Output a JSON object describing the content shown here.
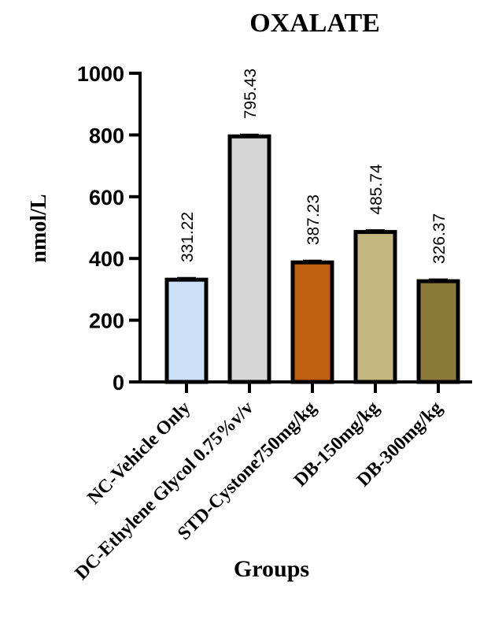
{
  "chart_data": {
    "type": "bar",
    "title": "OXALATE",
    "xlabel": "Groups",
    "ylabel": "nmol/L",
    "categories": [
      "NC-Vehicle Only",
      "DC-Ethylene Glycol 0.75%v/v",
      "STD-Cystone750mg/kg",
      "DB-150mg/kg",
      "DB-300mg/kg"
    ],
    "values": [
      331.22,
      795.43,
      387.23,
      485.74,
      326.37
    ],
    "value_labels": [
      "331.22",
      "795.43",
      "387.23",
      "485.74",
      "326.37"
    ],
    "error": [
      5,
      5,
      5,
      5,
      5
    ],
    "colors": [
      "#cce0f8",
      "#d6d6d6",
      "#c05f10",
      "#c4b880",
      "#8b7b3b"
    ],
    "ylim": [
      0,
      1000
    ],
    "yticks": [
      0,
      200,
      400,
      600,
      800,
      1000
    ],
    "grid": false,
    "legend": "none"
  }
}
